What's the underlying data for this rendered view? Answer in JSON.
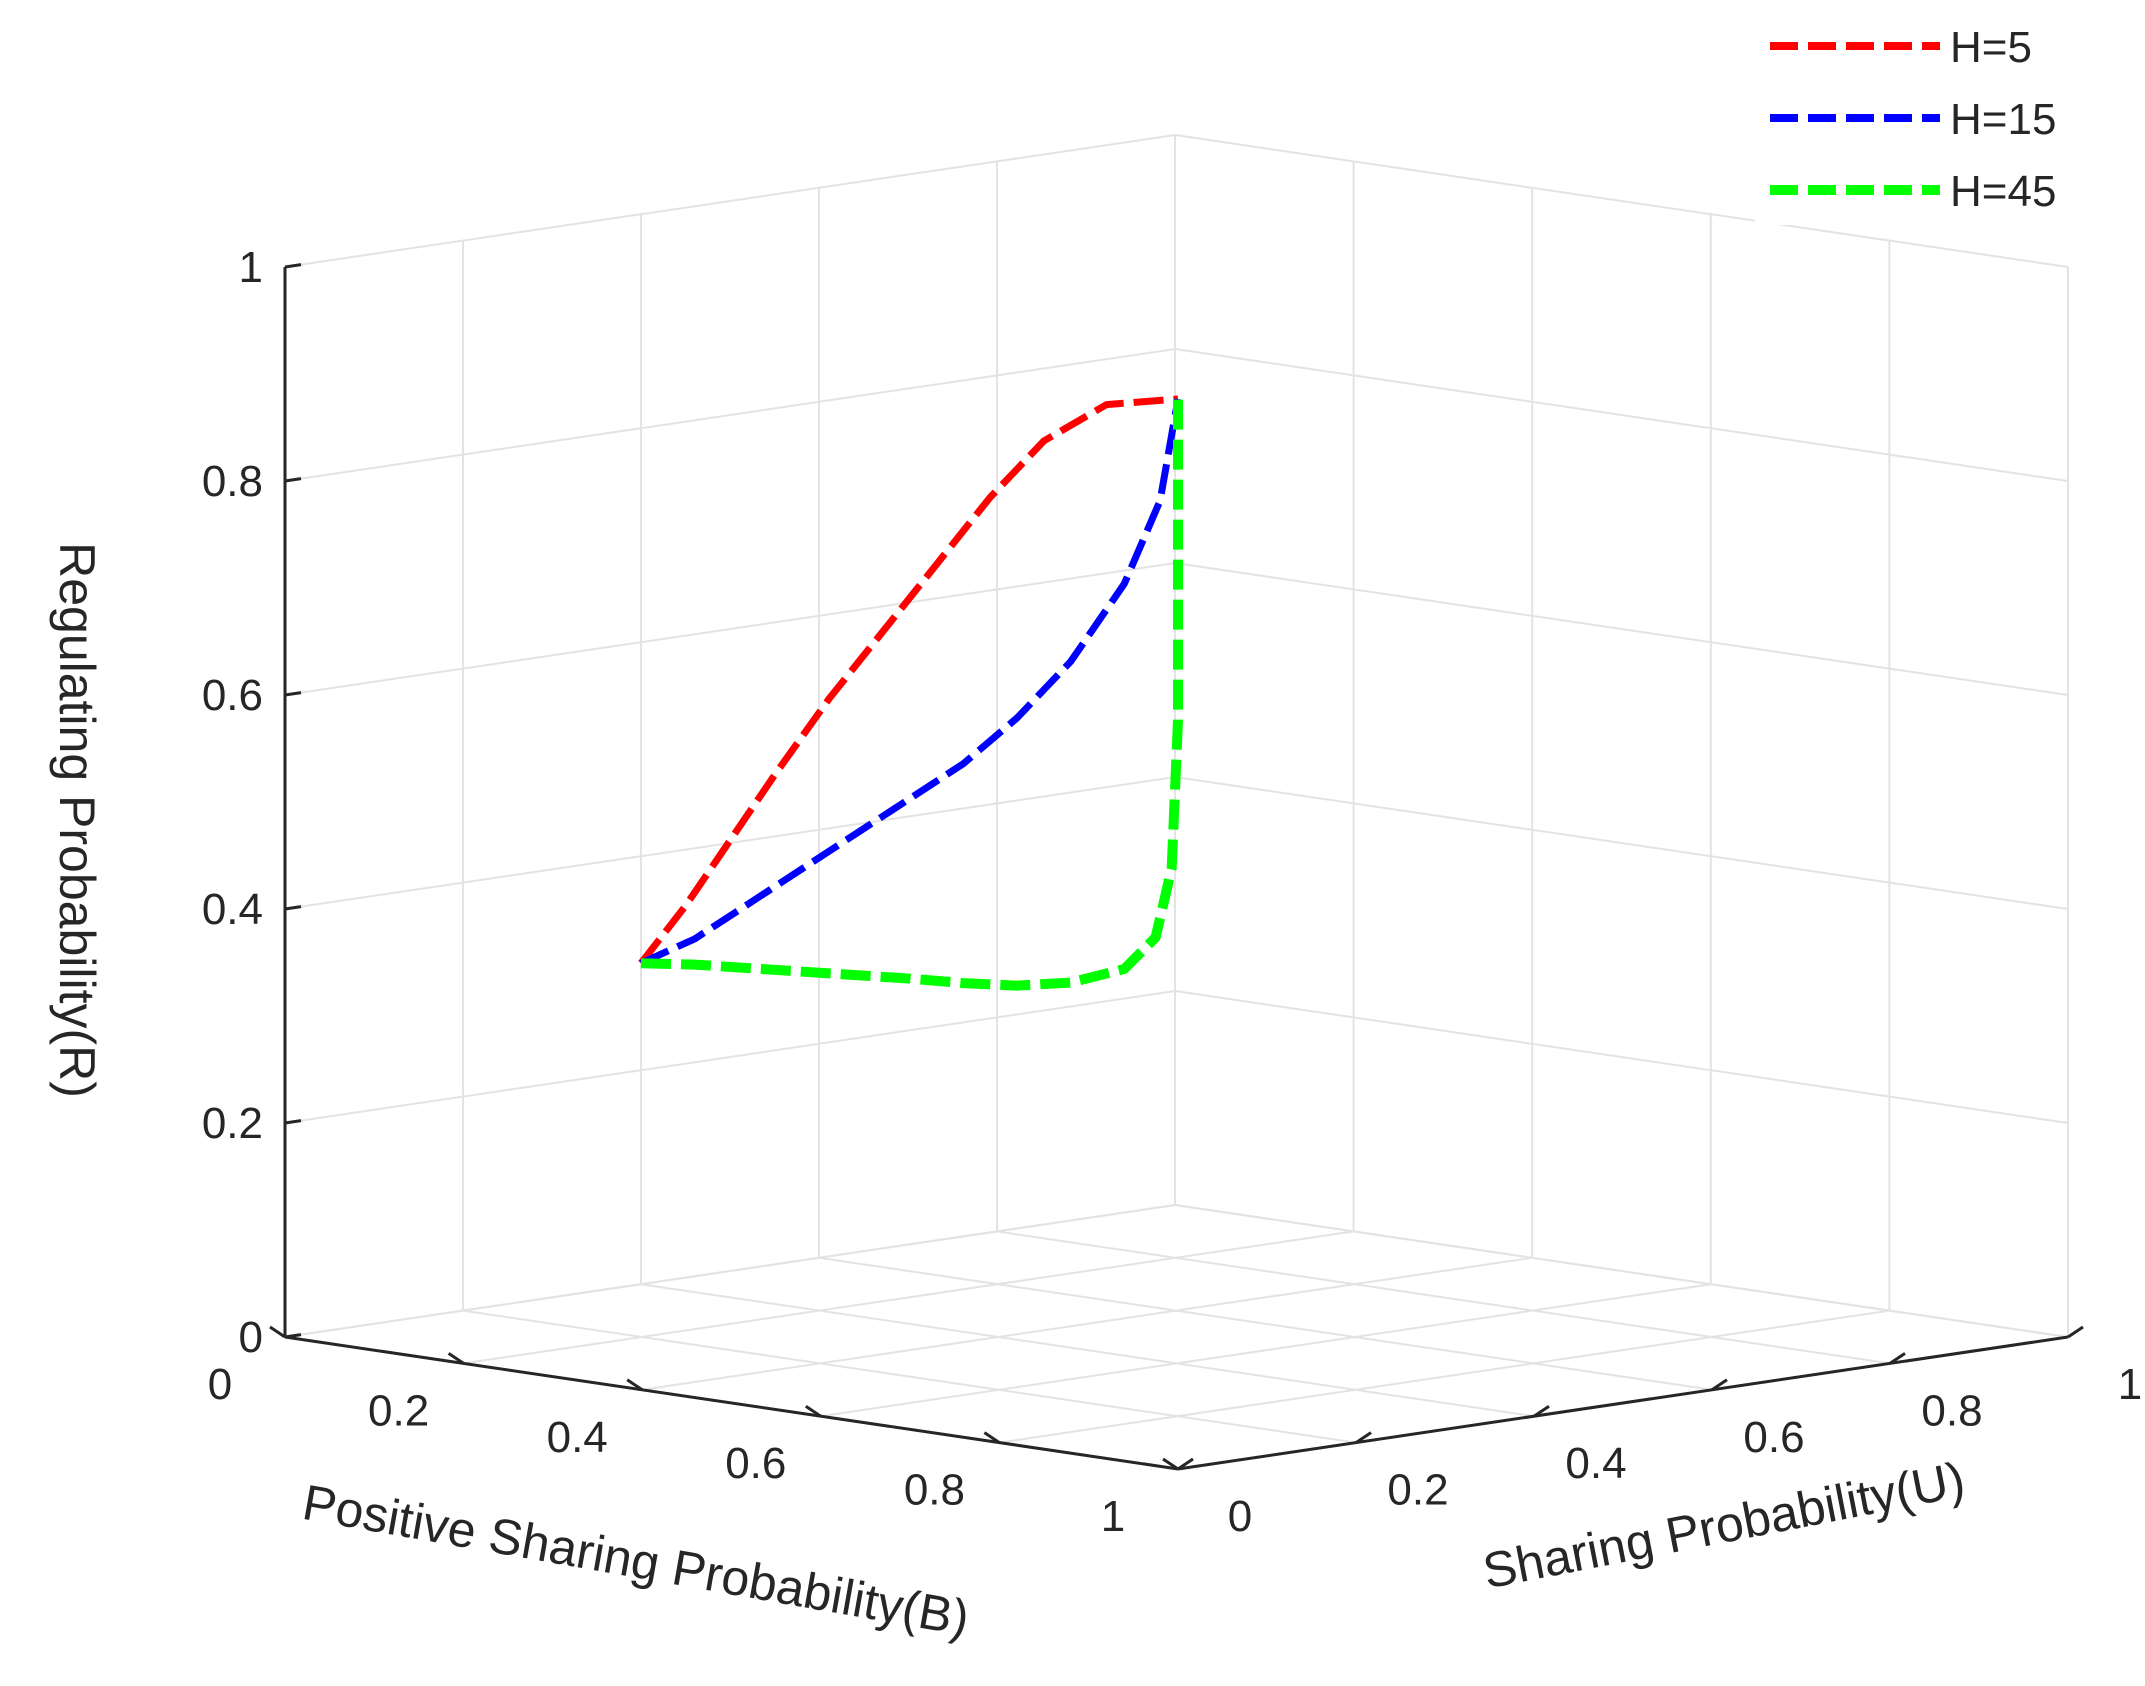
{
  "chart_data": {
    "type": "line3d",
    "title": "",
    "xlabel": "Sharing Probability(U)",
    "ylabel": "Positive Sharing Probability(B)",
    "zlabel": "Regulating Probability(R)",
    "xlim": [
      0,
      1
    ],
    "ylim": [
      0,
      1
    ],
    "zlim": [
      0,
      1
    ],
    "x_ticks": [
      "0",
      "0.2",
      "0.4",
      "0.6",
      "0.8",
      "1"
    ],
    "y_ticks": [
      "0",
      "0.2",
      "0.4",
      "0.6",
      "0.8",
      "1"
    ],
    "z_ticks": [
      "0",
      "0.2",
      "0.4",
      "0.6",
      "0.8",
      "1"
    ],
    "grid": true,
    "legend_position": "top-right",
    "series": [
      {
        "name": "H=5",
        "color": "#ff0000",
        "points": [
          [
            0,
            0.6,
            0.3
          ],
          [
            0.09,
            0.64,
            0.37
          ],
          [
            0.19,
            0.69,
            0.45
          ],
          [
            0.29,
            0.74,
            0.53
          ],
          [
            0.4,
            0.79,
            0.62
          ],
          [
            0.5,
            0.83,
            0.7
          ],
          [
            0.6,
            0.87,
            0.78
          ],
          [
            0.7,
            0.91,
            0.86
          ],
          [
            0.8,
            0.95,
            0.93
          ],
          [
            0.9,
            0.98,
            0.98
          ],
          [
            1,
            1,
            1
          ]
        ]
      },
      {
        "name": "H=15",
        "color": "#0000ff",
        "points": [
          [
            0,
            0.6,
            0.3
          ],
          [
            0.1,
            0.64,
            0.34
          ],
          [
            0.2,
            0.68,
            0.39
          ],
          [
            0.3,
            0.72,
            0.44
          ],
          [
            0.4,
            0.76,
            0.49
          ],
          [
            0.5,
            0.8,
            0.54
          ],
          [
            0.6,
            0.84,
            0.59
          ],
          [
            0.7,
            0.88,
            0.65
          ],
          [
            0.8,
            0.92,
            0.72
          ],
          [
            0.9,
            0.96,
            0.81
          ],
          [
            0.97,
            0.99,
            0.9
          ],
          [
            1,
            1,
            1
          ]
        ]
      },
      {
        "name": "H=45",
        "color": "#00ff00",
        "points": [
          [
            0,
            0.6,
            0.3
          ],
          [
            0.1,
            0.64,
            0.316
          ],
          [
            0.2,
            0.68,
            0.33
          ],
          [
            0.3,
            0.72,
            0.344
          ],
          [
            0.4,
            0.76,
            0.358
          ],
          [
            0.5,
            0.8,
            0.372
          ],
          [
            0.6,
            0.84,
            0.385
          ],
          [
            0.7,
            0.88,
            0.4
          ],
          [
            0.8,
            0.92,
            0.42
          ],
          [
            0.9,
            0.96,
            0.45
          ],
          [
            0.96,
            0.985,
            0.49
          ],
          [
            0.99,
            0.997,
            0.56
          ],
          [
            1,
            1,
            0.7
          ],
          [
            1,
            1,
            0.85
          ],
          [
            1,
            1,
            1
          ]
        ]
      }
    ]
  }
}
